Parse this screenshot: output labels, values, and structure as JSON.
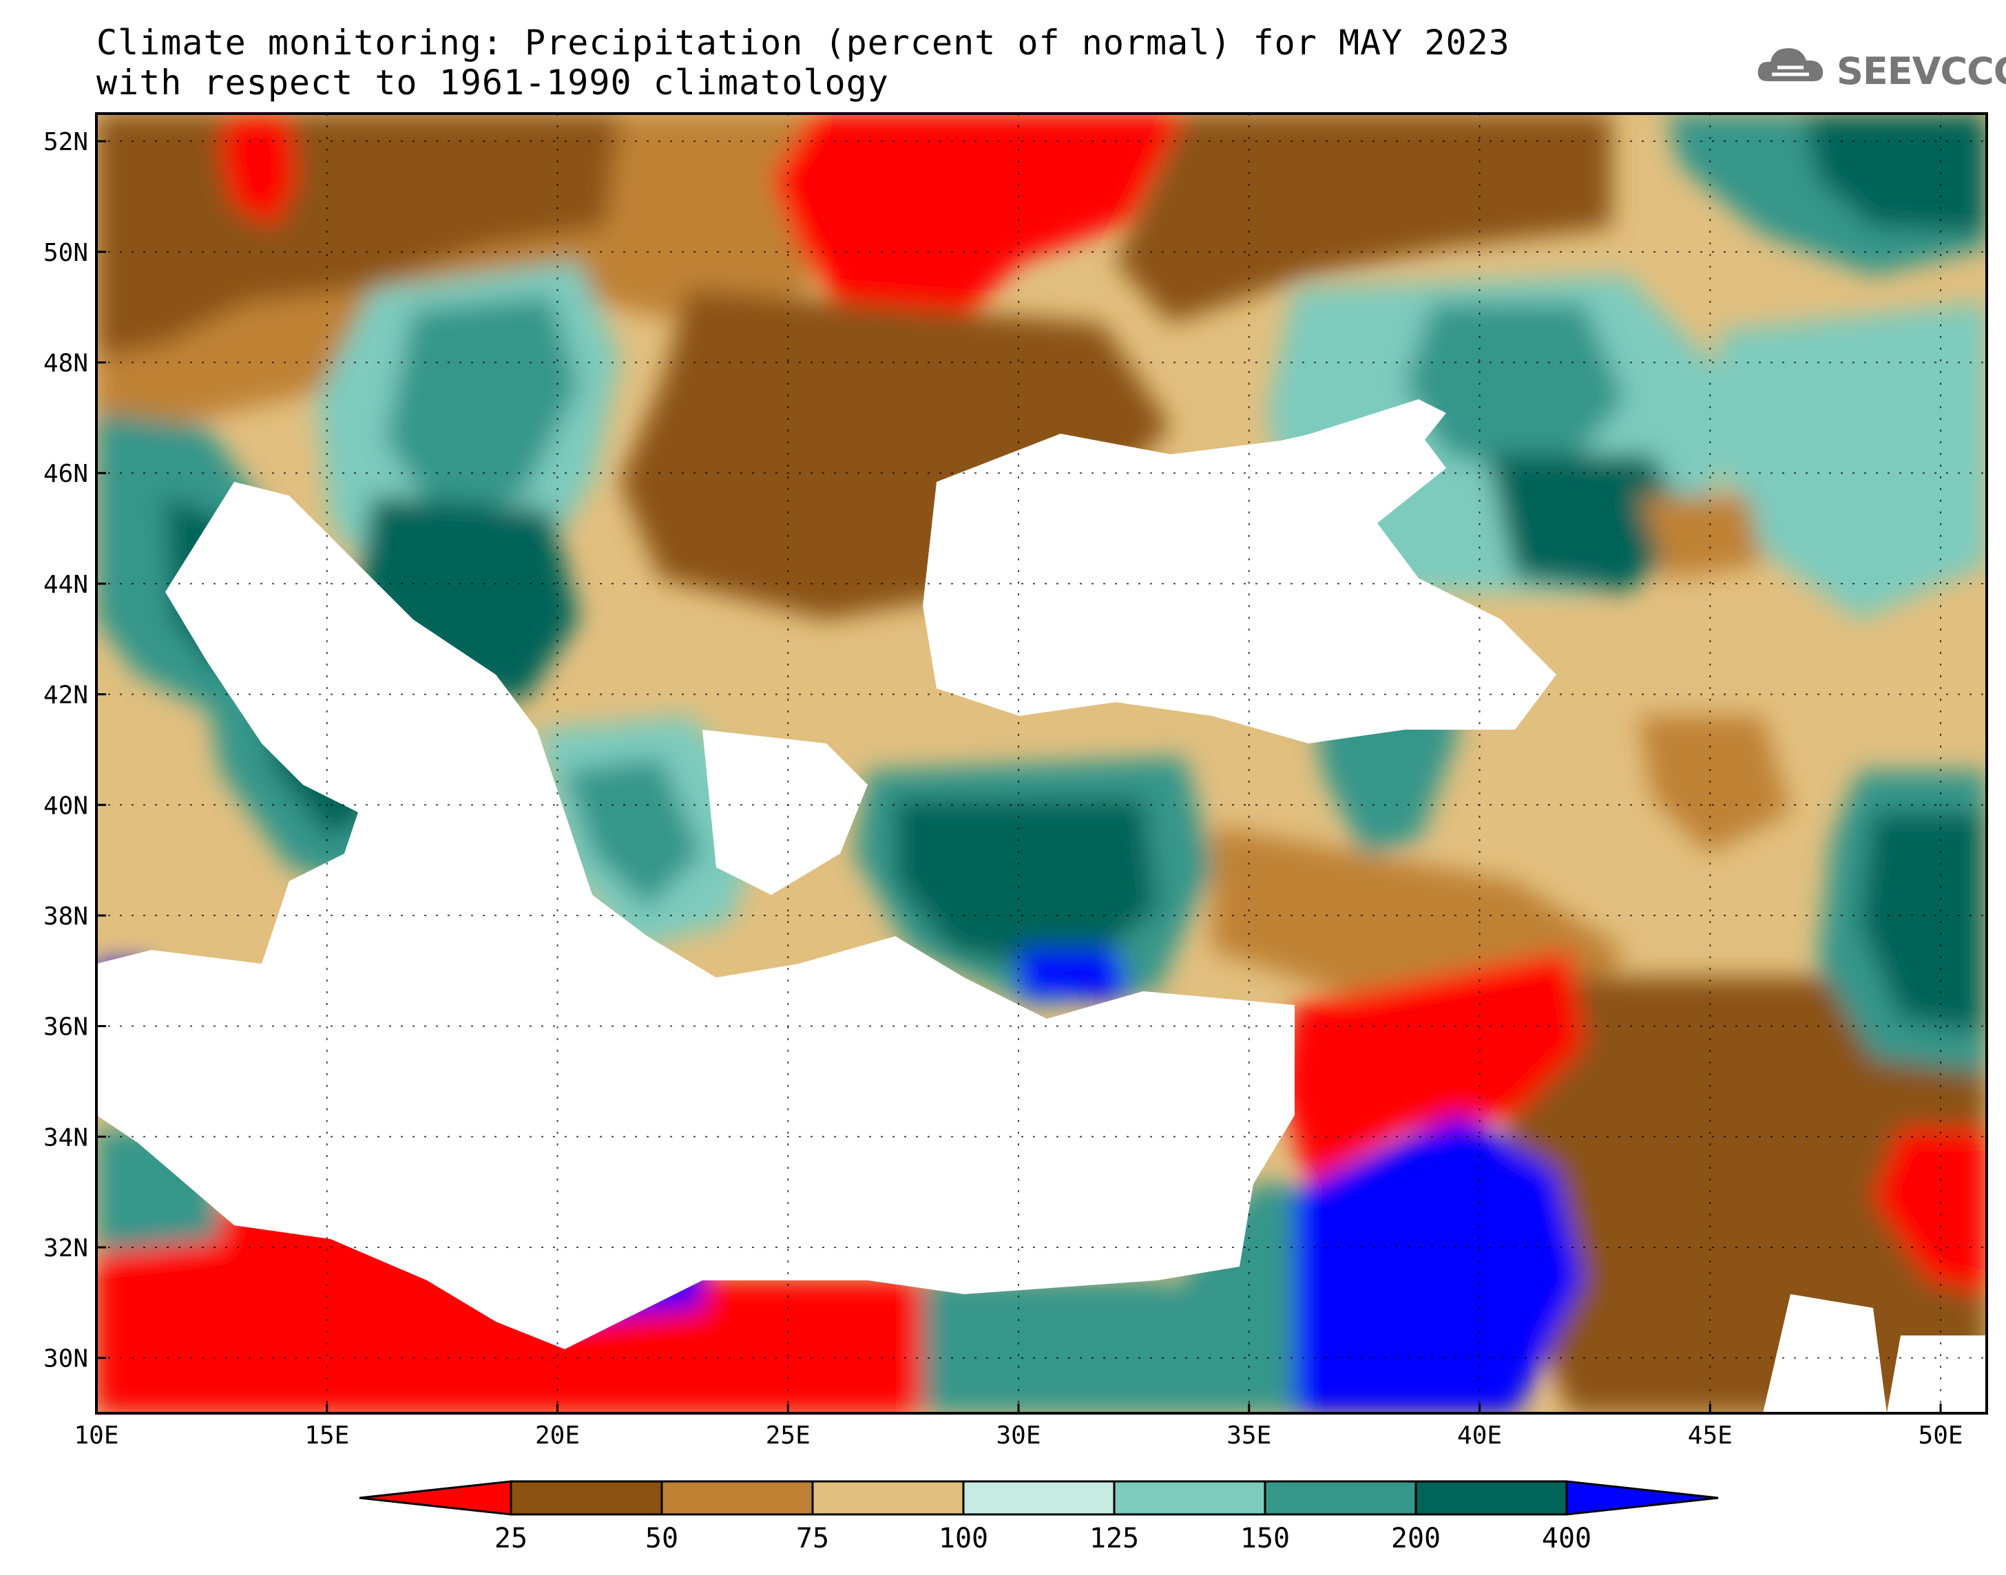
{
  "title": {
    "line1": "Climate monitoring: Precipitation (percent of normal) for MAY 2023",
    "line2": "with respect to 1961-1990 climatology"
  },
  "logo": {
    "text": "SEEVCCC",
    "icon": "cloud-logo-icon"
  },
  "map": {
    "lon_range": [
      10,
      51
    ],
    "lat_range": [
      29,
      52.5
    ],
    "x_ticks": [
      "10E",
      "15E",
      "20E",
      "25E",
      "30E",
      "35E",
      "40E",
      "45E",
      "50E"
    ],
    "y_ticks": [
      "52N",
      "50N",
      "48N",
      "46N",
      "44N",
      "42N",
      "40N",
      "38N",
      "36N",
      "34N",
      "32N",
      "30N"
    ],
    "grid": "dotted"
  },
  "colorbar": {
    "labels": [
      "25",
      "50",
      "75",
      "100",
      "125",
      "150",
      "200",
      "400"
    ],
    "colors": [
      "#ff0000",
      "#8b5212",
      "#bf8234",
      "#e1bf7f",
      "#c6ebe3",
      "#7dcbbd",
      "#35968a",
      "#006458",
      "#0000ff"
    ],
    "extend": "both"
  }
}
